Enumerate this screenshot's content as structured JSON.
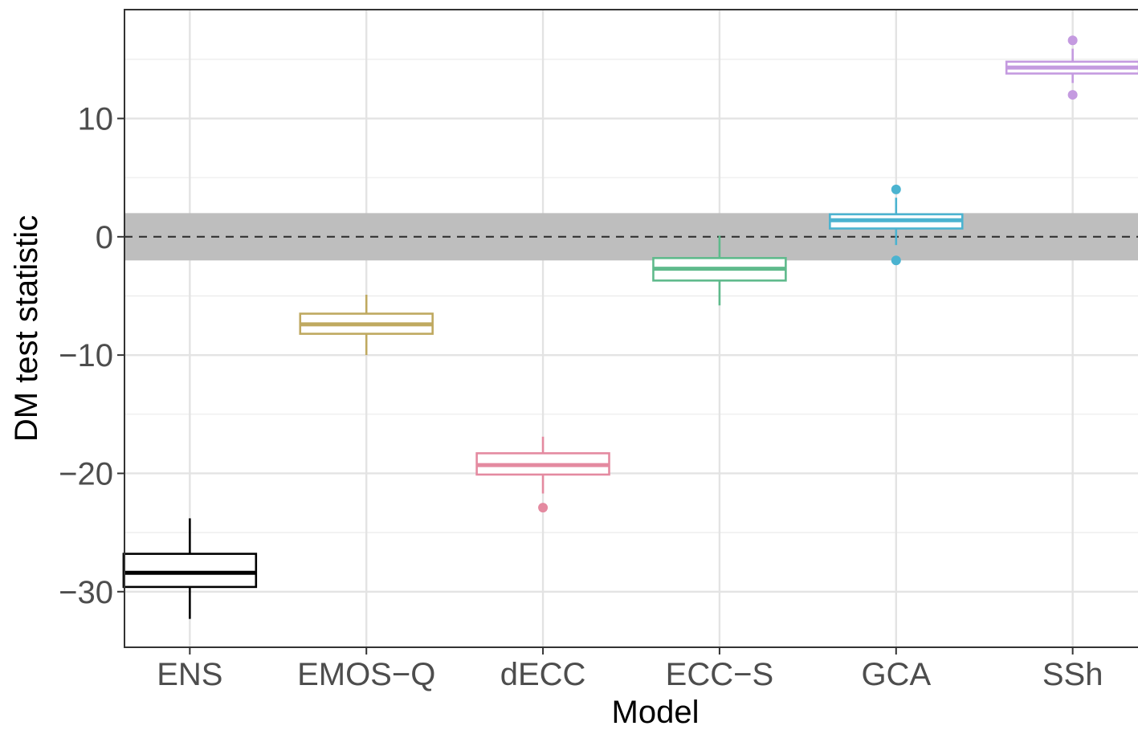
{
  "chart_data": {
    "type": "boxplot",
    "xlabel": "Model",
    "ylabel": "DM test statistic",
    "ylim": [
      -34.7,
      19.2
    ],
    "yticks": [
      -30,
      -20,
      -10,
      0,
      10
    ],
    "ytick_labels": [
      "−30",
      "−20",
      "−10",
      "0",
      "10"
    ],
    "categories": [
      "ENS",
      "EMOS−Q",
      "dECC",
      "ECC−S",
      "GCA",
      "SSh"
    ],
    "reference_line": 0,
    "shaded_band": [
      -2,
      2
    ],
    "grid": true,
    "boxes": [
      {
        "name": "ENS",
        "color": "#000000",
        "whisker_low": -32.3,
        "q1": -29.6,
        "median": -28.4,
        "q3": -26.8,
        "whisker_high": -23.8,
        "outliers": []
      },
      {
        "name": "EMOS−Q",
        "color": "#bfa960",
        "whisker_low": -10.0,
        "q1": -8.2,
        "median": -7.4,
        "q3": -6.5,
        "whisker_high": -4.9,
        "outliers": []
      },
      {
        "name": "dECC",
        "color": "#e48aa0",
        "whisker_low": -21.7,
        "q1": -20.1,
        "median": -19.3,
        "q3": -18.3,
        "whisker_high": -16.9,
        "outliers": [
          -22.9
        ]
      },
      {
        "name": "ECC−S",
        "color": "#5fba8c",
        "whisker_low": -5.8,
        "q1": -3.7,
        "median": -2.7,
        "q3": -1.8,
        "whisker_high": 0.1,
        "outliers": []
      },
      {
        "name": "GCA",
        "color": "#4bb3d0",
        "whisker_low": -0.7,
        "q1": 0.7,
        "median": 1.4,
        "q3": 1.9,
        "whisker_high": 3.3,
        "outliers": [
          4.0,
          -2.0
        ]
      },
      {
        "name": "SSh",
        "color": "#c49ae0",
        "whisker_low": 13.0,
        "q1": 13.8,
        "median": 14.3,
        "q3": 14.8,
        "whisker_high": 15.9,
        "outliers": [
          16.6,
          12.0
        ]
      }
    ]
  }
}
